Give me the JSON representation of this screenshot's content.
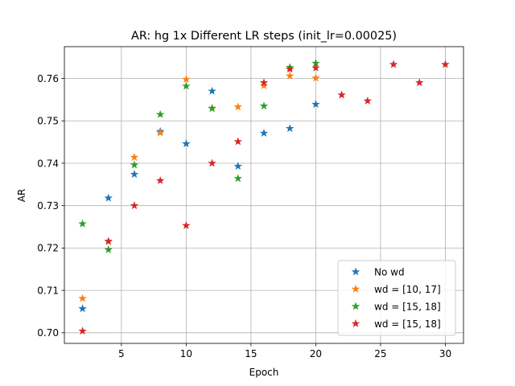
{
  "chart_data": {
    "type": "scatter",
    "title": "AR: hg 1x Different LR steps (init_lr=0.00025)",
    "xlabel": "Epoch",
    "ylabel": "AR",
    "xlim": [
      0.6,
      31.4
    ],
    "ylim": [
      0.6975,
      0.7675
    ],
    "xticks": [
      5,
      10,
      15,
      20,
      25,
      30
    ],
    "yticks": [
      0.7,
      0.71,
      0.72,
      0.73,
      0.74,
      0.75,
      0.76
    ],
    "xtick_labels": [
      "5",
      "10",
      "15",
      "20",
      "25",
      "30"
    ],
    "ytick_labels": [
      "0.70",
      "0.71",
      "0.72",
      "0.73",
      "0.74",
      "0.75",
      "0.76"
    ],
    "grid": true,
    "legend_position": "lower-right",
    "marker": "star",
    "series": [
      {
        "name": "No wd",
        "color": "#1f77b4",
        "x": [
          2,
          4,
          6,
          8,
          10,
          12,
          14,
          16,
          18,
          20
        ],
        "y": [
          0.7057,
          0.7318,
          0.7374,
          0.7475,
          0.7446,
          0.757,
          0.7393,
          0.7471,
          0.7482,
          0.7539
        ]
      },
      {
        "name": "wd = [10, 17]",
        "color": "#ff7f0e",
        "x": [
          2,
          4,
          6,
          8,
          10,
          12,
          14,
          16,
          18,
          20
        ],
        "y": [
          0.7081,
          0.7215,
          0.7414,
          0.7472,
          0.7598,
          0.753,
          0.7533,
          0.7583,
          0.7606,
          0.7601
        ]
      },
      {
        "name": "wd = [15, 18]",
        "color": "#2ca02c",
        "x": [
          2,
          4,
          6,
          8,
          10,
          12,
          14,
          16,
          18,
          20
        ],
        "y": [
          0.7257,
          0.7196,
          0.7396,
          0.7515,
          0.7582,
          0.7529,
          0.7364,
          0.7535,
          0.7626,
          0.7636
        ]
      },
      {
        "name": "wd = [15, 18]",
        "color": "#d62728",
        "x": [
          2,
          4,
          6,
          8,
          10,
          12,
          14,
          16,
          18,
          20,
          22,
          24,
          26,
          28,
          30
        ],
        "y": [
          0.7004,
          0.7216,
          0.73,
          0.7359,
          0.7253,
          0.74,
          0.7451,
          0.759,
          0.7622,
          0.7625,
          0.7561,
          0.7547,
          0.7633,
          0.759,
          0.7633
        ]
      }
    ]
  }
}
